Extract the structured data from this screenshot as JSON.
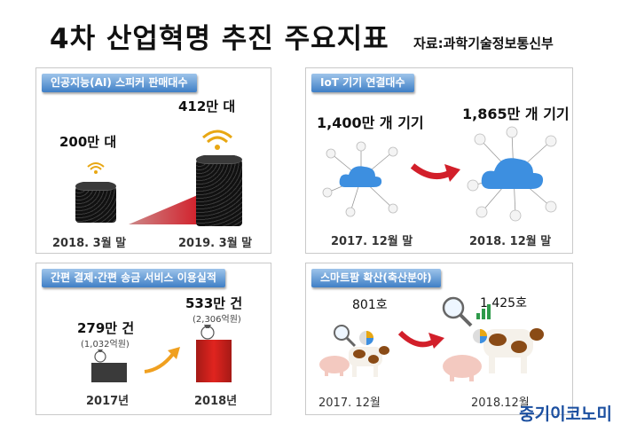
{
  "title": "4차 산업혁명 추진 주요지표",
  "source": "자료:과학기술정보통신부",
  "brand": "중기이코노미",
  "panels": {
    "ai_speaker": {
      "header": "인공지능(AI) 스피커 판매대수",
      "before": {
        "value": "200만 대",
        "period": "2018. 3월 말"
      },
      "after": {
        "value": "412만 대",
        "period": "2019. 3월 말"
      }
    },
    "iot": {
      "header": "IoT 기기 연결대수",
      "before": {
        "value": "1,400만 개 기기",
        "period": "2017. 12월 말"
      },
      "after": {
        "value": "1,865만 개 기기",
        "period": "2018. 12월 말"
      }
    },
    "payment": {
      "header": "간편 결제·간편 송금 서비스 이용실적",
      "before": {
        "value": "279만 건",
        "sub": "(1,032억원)",
        "period": "2017년"
      },
      "after": {
        "value": "533만 건",
        "sub": "(2,306억원)",
        "period": "2018년"
      }
    },
    "smartfarm": {
      "header": "스마트팜 확산(축산분야)",
      "before": {
        "value": "801호",
        "period": "2017. 12월"
      },
      "after": {
        "value": "1,425호",
        "period": "2018.12월"
      }
    }
  },
  "colors": {
    "header_top": "#9ec4ea",
    "header_bottom": "#3f7fc6",
    "arrow": "#d21f2a",
    "cloud": "#3d8fe0",
    "bar_red": "#e0241f",
    "bar_dark": "#3a3a3a"
  },
  "icons": [
    "wifi-icon",
    "smart-speaker-icon",
    "cloud-icon",
    "device-icon",
    "money-bag-icon",
    "growth-arrow-icon",
    "pig-icon",
    "cow-icon",
    "magnifier-icon",
    "chart-icon"
  ]
}
